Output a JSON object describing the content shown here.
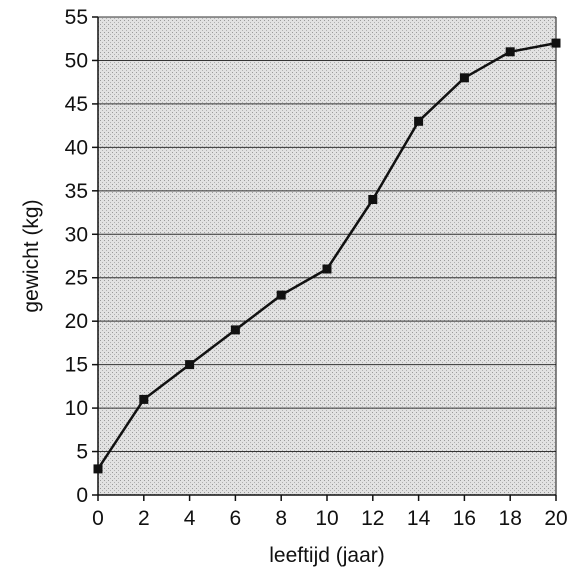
{
  "chart_data": {
    "type": "line",
    "title": "",
    "xlabel": "leeftijd (jaar)",
    "ylabel": "gewicht (kg)",
    "xlim": [
      0,
      20
    ],
    "ylim": [
      0,
      55
    ],
    "xticks": [
      0,
      2,
      4,
      6,
      8,
      10,
      12,
      14,
      16,
      18,
      20
    ],
    "yticks": [
      0,
      5,
      10,
      15,
      20,
      25,
      30,
      35,
      40,
      45,
      50,
      55
    ],
    "grid": "horizontal",
    "legend": "none",
    "series": [
      {
        "x": [
          0,
          2,
          4,
          6,
          8,
          10,
          12,
          14,
          16,
          18,
          20
        ],
        "y": [
          3,
          11,
          15,
          19,
          23,
          26,
          34,
          43,
          48,
          51,
          52
        ]
      }
    ],
    "colors": {
      "line": "#111111",
      "marker": "#111111",
      "plot_background": "#d9d9d9",
      "grid": "#333333"
    }
  }
}
